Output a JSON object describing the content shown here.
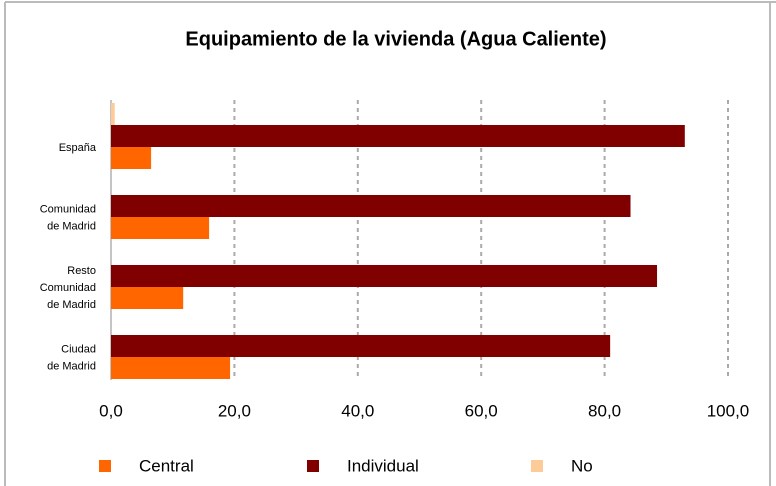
{
  "chart_data": {
    "type": "hbar",
    "title": "Equipamiento de la vivienda (Agua Caliente)",
    "categories": [
      "España",
      "Comunidad\nde Madrid",
      "Resto\nComunidad\nde Madrid",
      "Ciudad\nde Madrid"
    ],
    "series": [
      {
        "name": "Central",
        "color": "#ff6600",
        "values": [
          6.5,
          15.9,
          11.7,
          19.3
        ]
      },
      {
        "name": "Individual",
        "color": "#800000",
        "values": [
          93.0,
          84.2,
          88.5,
          80.9
        ]
      },
      {
        "name": "No",
        "color": "#fccb98",
        "values": [
          0.6,
          0,
          0,
          0
        ]
      }
    ],
    "xlim": [
      0,
      100
    ],
    "xticks": [
      {
        "value": 0,
        "label": "0,0"
      },
      {
        "value": 20,
        "label": "20,0"
      },
      {
        "value": 40,
        "label": "40,0"
      },
      {
        "value": 60,
        "label": "60,0"
      },
      {
        "value": 80,
        "label": "80,0"
      },
      {
        "value": 100,
        "label": "100,0"
      }
    ],
    "grid": true
  }
}
